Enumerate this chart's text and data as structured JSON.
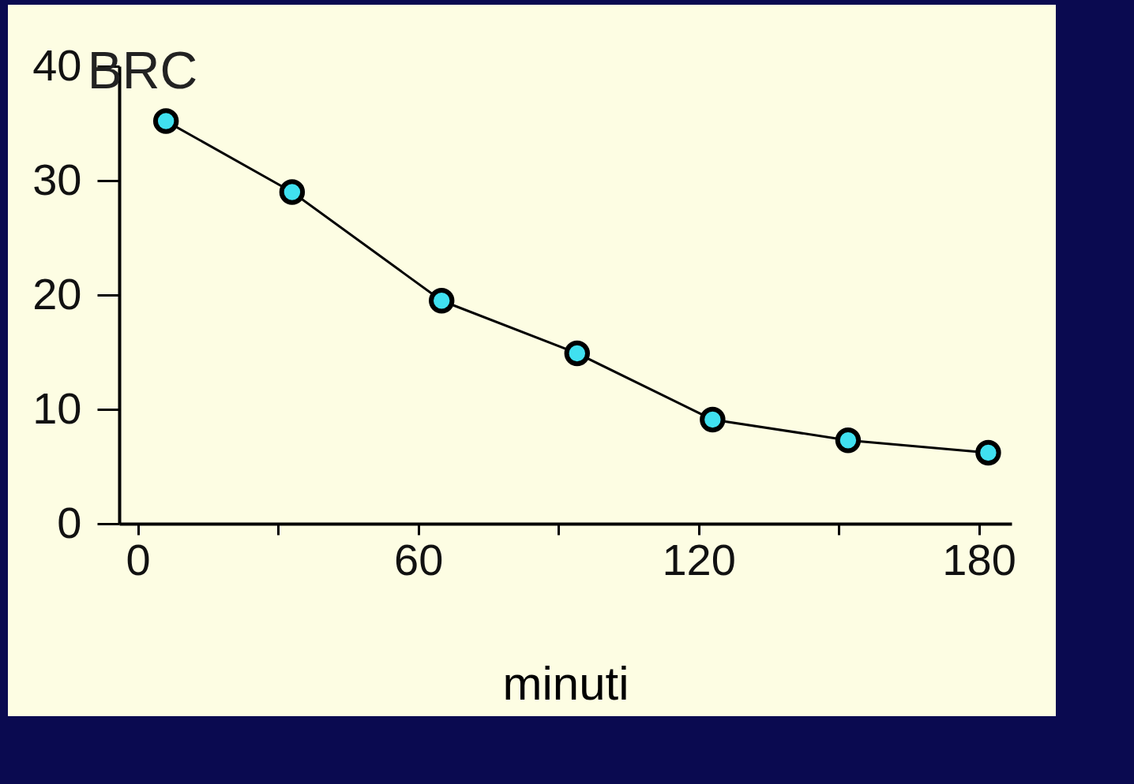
{
  "chart_data": {
    "type": "line",
    "title": "BRC",
    "xlabel": "minuti",
    "x": [
      6,
      33,
      65,
      94,
      123,
      152,
      182
    ],
    "series": [
      {
        "color": "#000000",
        "values": [
          35.2,
          29,
          19.5,
          14.9,
          9.1,
          7.3,
          6.2
        ]
      }
    ],
    "xlim": [
      -4,
      187
    ],
    "ylim": [
      0,
      40
    ],
    "xticks": [
      0,
      {
        "value": 30,
        "label": null
      },
      60,
      {
        "value": 90,
        "label": null
      },
      120,
      {
        "value": 150,
        "label": null
      },
      180
    ],
    "yticks": [
      0,
      10,
      20,
      30,
      40
    ],
    "grid": false,
    "marker": "circle",
    "line_style": "solid"
  }
}
